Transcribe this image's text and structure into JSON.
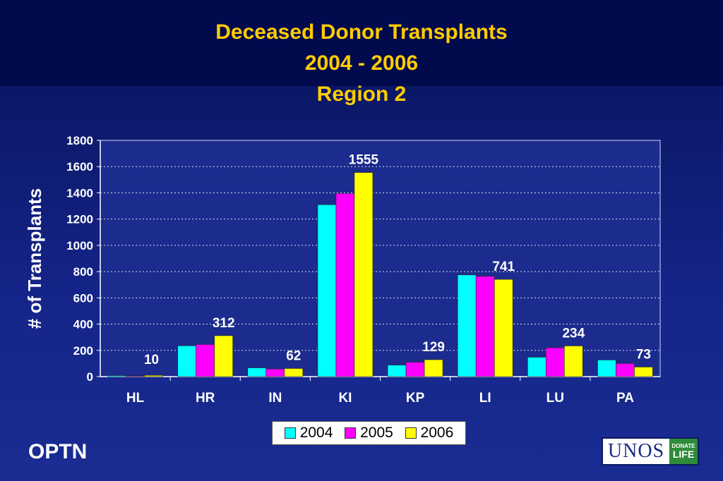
{
  "title_lines": [
    "Deceased Donor Transplants",
    "2004 - 2006",
    "Region 2"
  ],
  "footer_left": "OPTN",
  "logo": {
    "brand": "UNOS",
    "badge_top": "DONATE",
    "badge_bottom": "LIFE"
  },
  "colors": {
    "s2004": "#00ffff",
    "s2005": "#ff00ff",
    "s2006": "#ffff00",
    "title": "#ffcc00"
  },
  "chart_data": {
    "type": "bar",
    "title": "Deceased Donor Transplants 2004 - 2006 Region 2",
    "xlabel": "",
    "ylabel": "# of Transplants",
    "ylim": [
      0,
      1800
    ],
    "yticks": [
      0,
      200,
      400,
      600,
      800,
      1000,
      1200,
      1400,
      1600,
      1800
    ],
    "grid": true,
    "legend_position": "bottom",
    "categories": [
      "HL",
      "HR",
      "IN",
      "KI",
      "KP",
      "LI",
      "LU",
      "PA"
    ],
    "series": [
      {
        "name": "2004",
        "color": "#00ffff",
        "values": [
          8,
          235,
          67,
          1310,
          88,
          775,
          148,
          127
        ]
      },
      {
        "name": "2005",
        "color": "#ff00ff",
        "values": [
          5,
          245,
          58,
          1395,
          110,
          765,
          220,
          100
        ]
      },
      {
        "name": "2006",
        "color": "#ffff00",
        "values": [
          10,
          312,
          62,
          1555,
          129,
          741,
          234,
          73
        ]
      }
    ],
    "data_labels": [
      {
        "category": "HL",
        "series": "2006",
        "text": "10"
      },
      {
        "category": "HR",
        "series": "2006",
        "text": "312"
      },
      {
        "category": "IN",
        "series": "2006",
        "text": "62"
      },
      {
        "category": "KI",
        "series": "2006",
        "text": "1555"
      },
      {
        "category": "KP",
        "series": "2006",
        "text": "129"
      },
      {
        "category": "LI",
        "series": "2006",
        "text": "741"
      },
      {
        "category": "LU",
        "series": "2006",
        "text": "234"
      },
      {
        "category": "PA",
        "series": "2006",
        "text": "73"
      }
    ]
  }
}
